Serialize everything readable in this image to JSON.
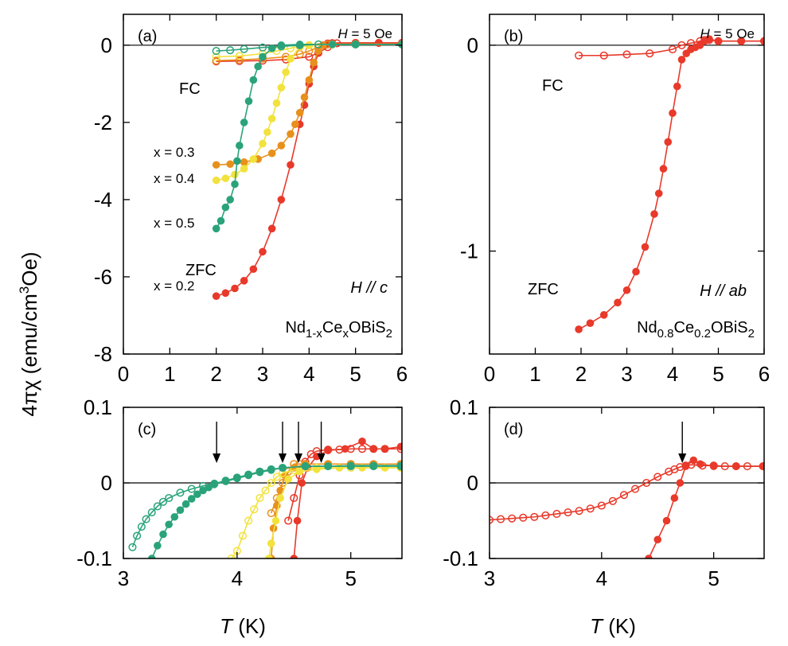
{
  "colors": {
    "x0.2": "#e8392a",
    "x0.3": "#e8901c",
    "x0.4": "#f2e23d",
    "x0.5": "#2aa37a"
  },
  "ylabel": {
    "prefix": "4πχ (emu/cm",
    "sup": "3",
    "suffix": "Oe)"
  },
  "xlabel_c": {
    "var": "T",
    "unit": " (K)"
  },
  "xlabel_d": {
    "var": "T",
    "unit": " (K)"
  },
  "chart_data": [
    {
      "type": "scatter",
      "panel": "(a)",
      "xlim": [
        0,
        6
      ],
      "ylim": [
        -8,
        0.8
      ],
      "xticks": [
        0,
        1,
        2,
        3,
        4,
        5,
        6
      ],
      "yticks": [
        -8,
        -6,
        -4,
        -2,
        0
      ],
      "annotations": {
        "panel": "(a)",
        "field": "H = 5 Oe",
        "fc": "FC",
        "zfc": "ZFC",
        "orientation": "H // c",
        "compound": "Nd1-xCexOBiS2"
      },
      "series": [
        {
          "name": "x = 0.2",
          "color_key": "x0.2",
          "zfc": {
            "x": [
              2.0,
              2.2,
              2.4,
              2.6,
              2.8,
              3.0,
              3.2,
              3.4,
              3.6,
              3.8,
              3.9,
              4.0,
              4.1,
              4.2,
              4.3,
              4.4,
              4.5,
              5.0,
              5.5,
              6.0
            ],
            "y": [
              -6.5,
              -6.42,
              -6.3,
              -6.1,
              -5.8,
              -5.35,
              -4.75,
              -4.0,
              -3.1,
              -2.05,
              -1.55,
              -1.0,
              -0.55,
              -0.2,
              0.0,
              0.05,
              0.06,
              0.06,
              0.06,
              0.06
            ]
          },
          "fc": {
            "x": [
              2.0,
              2.5,
              3.0,
              3.5,
              4.0,
              4.2,
              4.4,
              4.6,
              5.0,
              5.5,
              6.0
            ],
            "y": [
              -0.42,
              -0.41,
              -0.4,
              -0.37,
              -0.3,
              -0.2,
              -0.05,
              0.05,
              0.06,
              0.06,
              0.06
            ]
          }
        },
        {
          "name": "x = 0.3",
          "color_key": "x0.3",
          "zfc": {
            "x": [
              2.0,
              2.3,
              2.6,
              2.9,
              3.2,
              3.4,
              3.6,
              3.7,
              3.8,
              3.9,
              4.0,
              4.1,
              4.2,
              4.3,
              4.5,
              5.0,
              6.0
            ],
            "y": [
              -3.1,
              -3.08,
              -3.03,
              -2.95,
              -2.8,
              -2.6,
              -2.3,
              -2.05,
              -1.75,
              -1.35,
              -0.9,
              -0.45,
              -0.15,
              0.0,
              0.03,
              0.03,
              0.03
            ]
          },
          "fc": {
            "x": [
              2.0,
              2.5,
              3.0,
              3.5,
              3.8,
              4.0,
              4.2,
              4.4,
              5.0,
              6.0
            ],
            "y": [
              -0.4,
              -0.38,
              -0.35,
              -0.3,
              -0.23,
              -0.15,
              -0.05,
              0.02,
              0.03,
              0.03
            ]
          }
        },
        {
          "name": "x = 0.4",
          "color_key": "x0.4",
          "zfc": {
            "x": [
              2.0,
              2.2,
              2.4,
              2.6,
              2.8,
              3.0,
              3.1,
              3.2,
              3.3,
              3.4,
              3.5,
              3.6,
              3.8,
              4.0,
              4.5,
              5.0,
              6.0
            ],
            "y": [
              -3.5,
              -3.45,
              -3.35,
              -3.2,
              -2.95,
              -2.55,
              -2.25,
              -1.9,
              -1.5,
              -1.1,
              -0.7,
              -0.35,
              -0.05,
              0.0,
              0.02,
              0.02,
              0.02
            ]
          },
          "fc": {
            "x": [
              2.0,
              2.5,
              3.0,
              3.3,
              3.6,
              3.8,
              4.0,
              4.5,
              5.0,
              6.0
            ],
            "y": [
              -0.3,
              -0.28,
              -0.22,
              -0.15,
              -0.08,
              -0.02,
              0.0,
              0.02,
              0.02,
              0.02
            ]
          }
        },
        {
          "name": "x = 0.5",
          "color_key": "x0.5",
          "zfc": {
            "x": [
              2.0,
              2.1,
              2.2,
              2.3,
              2.4,
              2.45,
              2.5,
              2.6,
              2.7,
              2.8,
              2.9,
              3.0,
              3.2,
              3.4,
              3.8,
              4.5,
              5.0,
              6.0
            ],
            "y": [
              -4.75,
              -4.55,
              -4.2,
              -4.0,
              -3.6,
              -3.0,
              -2.6,
              -2.0,
              -1.45,
              -0.9,
              -0.55,
              -0.3,
              -0.08,
              0.0,
              0.02,
              0.02,
              0.02,
              0.02
            ]
          },
          "fc": {
            "x": [
              2.0,
              2.3,
              2.6,
              3.0,
              3.4,
              3.8,
              4.2,
              5.0,
              6.0
            ],
            "y": [
              -0.15,
              -0.13,
              -0.1,
              -0.06,
              -0.03,
              0.0,
              0.02,
              0.02,
              0.02
            ]
          }
        }
      ]
    },
    {
      "type": "scatter",
      "panel": "(b)",
      "xlim": [
        0,
        6
      ],
      "ylim": [
        -1.5,
        0.15
      ],
      "xticks": [
        0,
        1,
        2,
        3,
        4,
        5,
        6
      ],
      "yticks": [
        -1,
        0
      ],
      "annotations": {
        "panel": "(b)",
        "field": "H = 5 Oe",
        "fc": "FC",
        "zfc": "ZFC",
        "orientation": "H // ab",
        "compound": "Nd0.8Ce0.2OBiS2"
      },
      "series": [
        {
          "name": "Nd0.8Ce0.2OBiS2",
          "color_key": "x0.2",
          "zfc": {
            "x": [
              1.95,
              2.2,
              2.5,
              2.8,
              3.0,
              3.2,
              3.4,
              3.6,
              3.7,
              3.8,
              3.9,
              4.0,
              4.1,
              4.2,
              4.3,
              4.4,
              4.5,
              4.6,
              4.7,
              4.8,
              5.0,
              5.5,
              6.0
            ],
            "y": [
              -1.38,
              -1.35,
              -1.31,
              -1.25,
              -1.19,
              -1.1,
              -0.98,
              -0.82,
              -0.72,
              -0.6,
              -0.47,
              -0.33,
              -0.2,
              -0.07,
              -0.04,
              -0.02,
              -0.01,
              0.0,
              0.02,
              0.03,
              0.02,
              0.02,
              0.02
            ]
          },
          "fc": {
            "x": [
              1.95,
              2.5,
              3.0,
              3.5,
              4.0,
              4.2,
              4.4,
              4.6,
              4.7,
              4.8,
              5.0,
              5.5,
              6.0
            ],
            "y": [
              -0.05,
              -0.05,
              -0.045,
              -0.04,
              -0.02,
              0.0,
              0.01,
              0.02,
              0.025,
              0.025,
              0.02,
              0.02,
              0.02
            ]
          }
        }
      ]
    },
    {
      "type": "scatter",
      "panel": "(c)",
      "xlim": [
        3,
        5.45
      ],
      "ylim": [
        -0.1,
        0.1
      ],
      "xticks": [
        3,
        4,
        5
      ],
      "yticks": [
        -0.1,
        0,
        0.1
      ],
      "annotations": {
        "panel": "(c)"
      },
      "arrows_x": [
        3.82,
        4.4,
        4.54,
        4.74
      ],
      "series": [
        {
          "name": "x = 0.2",
          "color_key": "x0.2",
          "zfc": {
            "x": [
              4.5,
              4.53,
              4.57,
              4.62,
              4.7,
              4.8,
              4.95,
              5.1,
              5.2,
              5.3,
              5.44
            ],
            "y": [
              -0.1,
              -0.05,
              0.0,
              0.02,
              0.035,
              0.043,
              0.045,
              0.055,
              0.045,
              0.045,
              0.048
            ]
          },
          "fc": {
            "x": [
              4.45,
              4.5,
              4.55,
              4.6,
              4.65,
              4.7,
              4.8,
              4.9,
              5.0,
              5.1,
              5.2,
              5.3,
              5.44
            ],
            "y": [
              -0.05,
              -0.02,
              0.01,
              0.028,
              0.038,
              0.042,
              0.044,
              0.044,
              0.045,
              0.045,
              0.045,
              0.045,
              0.045
            ]
          }
        },
        {
          "name": "x = 0.3",
          "color_key": "x0.3",
          "zfc": {
            "x": [
              4.3,
              4.32,
              4.35,
              4.38,
              4.42,
              4.5,
              4.6,
              4.8,
              5.0,
              5.2,
              5.44
            ],
            "y": [
              -0.1,
              -0.06,
              -0.03,
              -0.01,
              0.01,
              0.02,
              0.025,
              0.025,
              0.025,
              0.025,
              0.025
            ]
          },
          "fc": {
            "x": [
              4.3,
              4.35,
              4.4,
              4.45,
              4.5,
              4.55,
              4.6,
              4.8,
              5.0,
              5.2,
              5.44
            ],
            "y": [
              -0.04,
              -0.02,
              0.0,
              0.015,
              0.025,
              0.025,
              0.025,
              0.025,
              0.025,
              0.025,
              0.025
            ]
          }
        },
        {
          "name": "x = 0.4",
          "color_key": "x0.4",
          "zfc": {
            "x": [
              4.28,
              4.3,
              4.34,
              4.38,
              4.45,
              4.55,
              4.7,
              4.9,
              5.1,
              5.3,
              5.44
            ],
            "y": [
              -0.1,
              -0.08,
              -0.05,
              -0.02,
              0.005,
              0.015,
              0.018,
              0.02,
              0.02,
              0.02,
              0.02
            ]
          },
          "fc": {
            "x": [
              3.95,
              4.0,
              4.05,
              4.1,
              4.15,
              4.2,
              4.25,
              4.3,
              4.35,
              4.4,
              4.5,
              4.7,
              5.0,
              5.44
            ],
            "y": [
              -0.1,
              -0.09,
              -0.07,
              -0.05,
              -0.035,
              -0.02,
              -0.01,
              0.0,
              0.008,
              0.013,
              0.017,
              0.02,
              0.02,
              0.02
            ]
          }
        },
        {
          "name": "x = 0.5",
          "color_key": "x0.5",
          "zfc": {
            "x": [
              3.25,
              3.3,
              3.35,
              3.4,
              3.45,
              3.5,
              3.55,
              3.6,
              3.65,
              3.7,
              3.75,
              3.8,
              3.9,
              4.0,
              4.1,
              4.2,
              4.3,
              4.4,
              4.6,
              4.8,
              5.0,
              5.2,
              5.44
            ],
            "y": [
              -0.1,
              -0.083,
              -0.068,
              -0.055,
              -0.045,
              -0.036,
              -0.028,
              -0.021,
              -0.015,
              -0.01,
              -0.006,
              -0.002,
              0.002,
              0.006,
              0.01,
              0.014,
              0.017,
              0.02,
              0.022,
              0.022,
              0.023,
              0.023,
              0.023
            ]
          },
          "fc": {
            "x": [
              3.08,
              3.12,
              3.16,
              3.2,
              3.25,
              3.3,
              3.35,
              3.4,
              3.5,
              3.6,
              3.7,
              3.8,
              3.9,
              4.0,
              4.1,
              4.2,
              4.3,
              4.4,
              4.6,
              4.8,
              5.0,
              5.2,
              5.44
            ],
            "y": [
              -0.085,
              -0.07,
              -0.058,
              -0.048,
              -0.039,
              -0.031,
              -0.025,
              -0.02,
              -0.013,
              -0.008,
              -0.004,
              -0.001,
              0.003,
              0.007,
              0.011,
              0.015,
              0.018,
              0.02,
              0.022,
              0.022,
              0.022,
              0.022,
              0.022
            ]
          }
        }
      ]
    },
    {
      "type": "scatter",
      "panel": "(d)",
      "xlim": [
        3,
        5.45
      ],
      "ylim": [
        -0.1,
        0.1
      ],
      "xticks": [
        3,
        4,
        5
      ],
      "yticks": [
        -0.1,
        0,
        0.1
      ],
      "annotations": {
        "panel": "(d)"
      },
      "arrows_x": [
        4.72
      ],
      "series": [
        {
          "name": "Nd0.8Ce0.2OBiS2",
          "color_key": "x0.2",
          "zfc": {
            "x": [
              4.42,
              4.5,
              4.58,
              4.65,
              4.7,
              4.75,
              4.82,
              4.88,
              5.0,
              5.2,
              5.44
            ],
            "y": [
              -0.1,
              -0.075,
              -0.05,
              -0.02,
              0.0,
              0.022,
              0.03,
              0.025,
              0.022,
              0.022,
              0.022
            ]
          },
          "fc": {
            "x": [
              3.0,
              3.1,
              3.2,
              3.3,
              3.4,
              3.5,
              3.6,
              3.7,
              3.8,
              3.9,
              4.0,
              4.1,
              4.2,
              4.3,
              4.4,
              4.5,
              4.6,
              4.65,
              4.7,
              4.75,
              4.8,
              4.9,
              5.0,
              5.1,
              5.2,
              5.3,
              5.44
            ],
            "y": [
              -0.049,
              -0.048,
              -0.047,
              -0.046,
              -0.045,
              -0.043,
              -0.041,
              -0.039,
              -0.037,
              -0.034,
              -0.03,
              -0.024,
              -0.016,
              -0.008,
              0.0,
              0.008,
              0.015,
              0.018,
              0.021,
              0.023,
              0.024,
              0.023,
              0.023,
              0.022,
              0.022,
              0.022,
              0.022
            ]
          }
        }
      ]
    }
  ]
}
